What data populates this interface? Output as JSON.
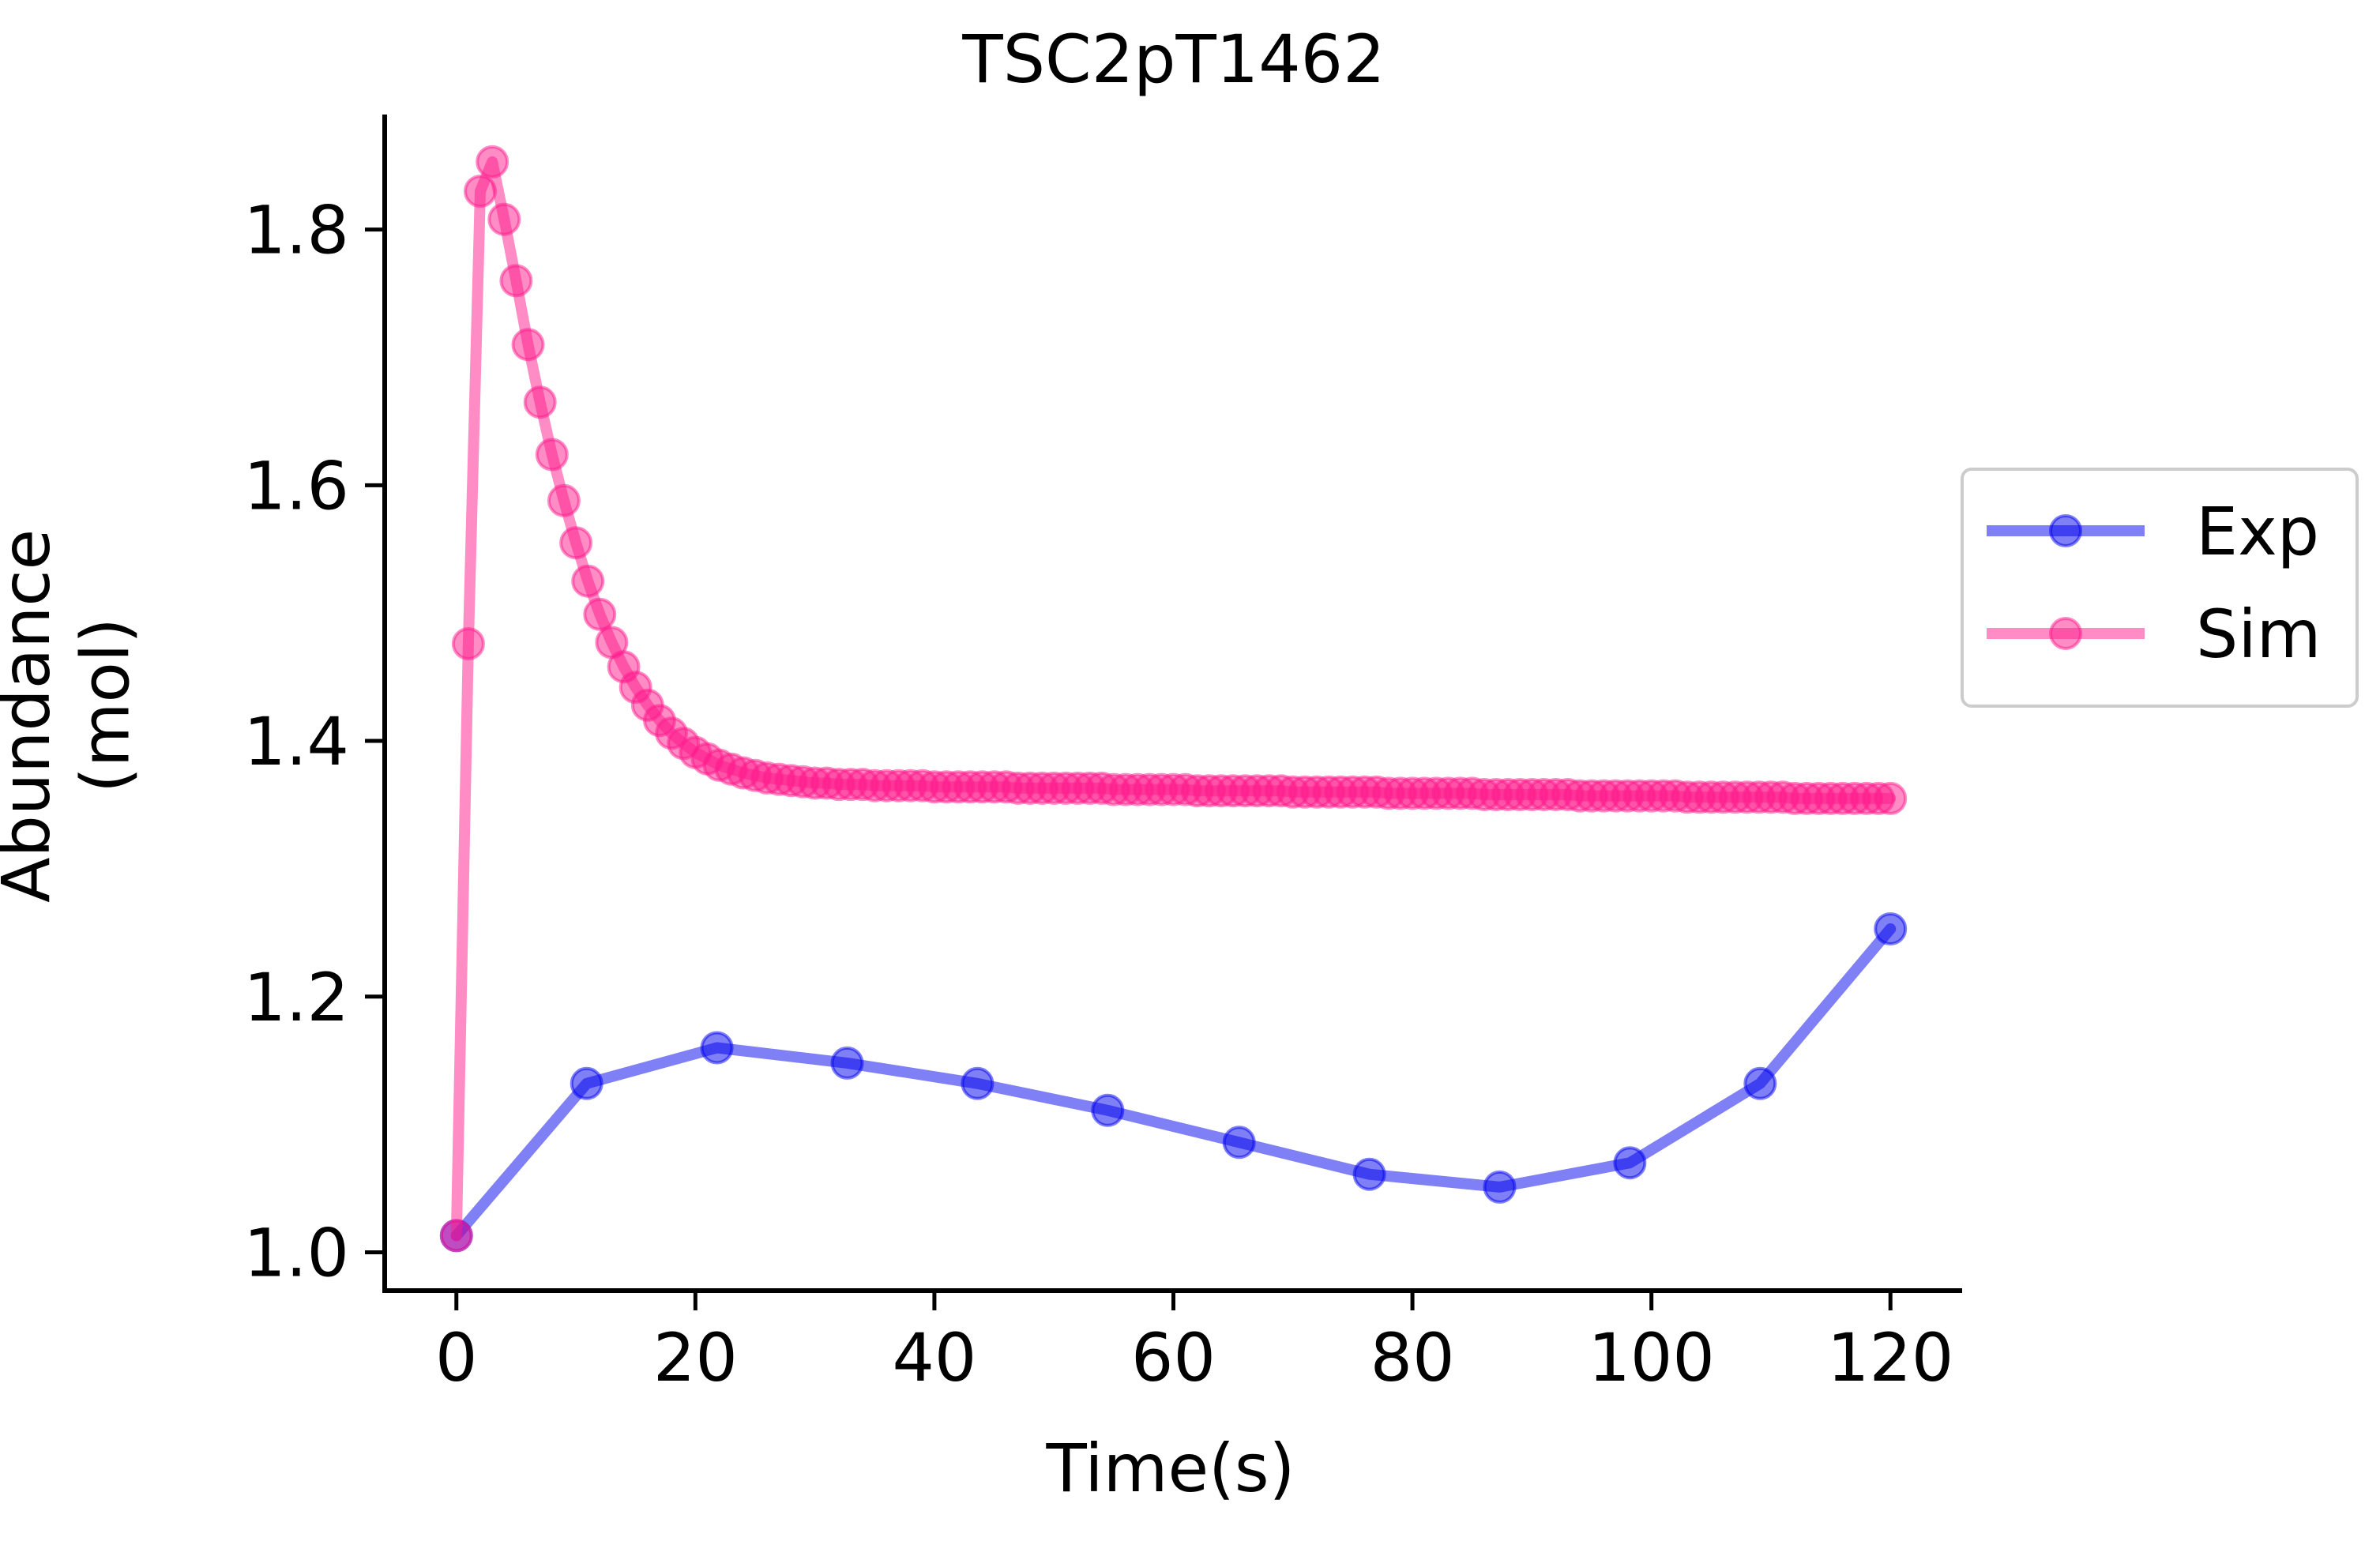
{
  "chart_data": {
    "type": "line",
    "title": "TSC2pT1462",
    "xlabel": "Time(s)",
    "ylabel_line1": "Abundance",
    "ylabel_line2": "(mol)",
    "xlim": [
      -6,
      126
    ],
    "ylim": [
      0.97,
      1.89
    ],
    "xticks": [
      0,
      20,
      40,
      60,
      80,
      100,
      120
    ],
    "xtick_labels": [
      "0",
      "20",
      "40",
      "60",
      "80",
      "100",
      "120"
    ],
    "yticks": [
      1.0,
      1.2,
      1.4,
      1.6,
      1.8
    ],
    "ytick_labels": [
      "1.0",
      "1.2",
      "1.4",
      "1.6",
      "1.8"
    ],
    "grid": false,
    "legend_position": "right",
    "series": [
      {
        "name": "Exp",
        "color": "#0000ee",
        "x": [
          0,
          10.9,
          21.8,
          32.7,
          43.6,
          54.5,
          65.5,
          76.4,
          87.3,
          98.2,
          109.1,
          120
        ],
        "y": [
          1.013,
          1.132,
          1.16,
          1.148,
          1.132,
          1.111,
          1.086,
          1.061,
          1.051,
          1.07,
          1.132,
          1.253
        ]
      },
      {
        "name": "Sim",
        "color": "#ff1a8c",
        "x": [
          0,
          1,
          2,
          3,
          4,
          5,
          6,
          7,
          8,
          9,
          10,
          11,
          12,
          13,
          14,
          15,
          16,
          17,
          18,
          19,
          20,
          21,
          22,
          23,
          24,
          25,
          26,
          27,
          28,
          29,
          30,
          31,
          32,
          33,
          34,
          35,
          36,
          37,
          38,
          39,
          40,
          41,
          42,
          43,
          44,
          45,
          46,
          47,
          48,
          49,
          50,
          51,
          52,
          53,
          54,
          55,
          56,
          57,
          58,
          59,
          60,
          61,
          62,
          63,
          64,
          65,
          66,
          67,
          68,
          69,
          70,
          71,
          72,
          73,
          74,
          75,
          76,
          77,
          78,
          79,
          80,
          81,
          82,
          83,
          84,
          85,
          86,
          87,
          88,
          89,
          90,
          91,
          92,
          93,
          94,
          95,
          96,
          97,
          98,
          99,
          100,
          101,
          102,
          103,
          104,
          105,
          106,
          107,
          108,
          109,
          110,
          111,
          112,
          113,
          114,
          115,
          116,
          117,
          118,
          119,
          120
        ],
        "y": [
          1.013,
          1.476,
          1.83,
          1.853,
          1.808,
          1.76,
          1.71,
          1.665,
          1.624,
          1.588,
          1.555,
          1.525,
          1.499,
          1.477,
          1.458,
          1.442,
          1.428,
          1.416,
          1.406,
          1.398,
          1.391,
          1.386,
          1.381,
          1.378,
          1.375,
          1.373,
          1.371,
          1.37,
          1.369,
          1.368,
          1.367,
          1.367,
          1.366,
          1.366,
          1.366,
          1.365,
          1.365,
          1.365,
          1.365,
          1.365,
          1.364,
          1.364,
          1.364,
          1.364,
          1.364,
          1.364,
          1.364,
          1.363,
          1.363,
          1.363,
          1.363,
          1.363,
          1.363,
          1.363,
          1.363,
          1.362,
          1.362,
          1.362,
          1.362,
          1.362,
          1.362,
          1.362,
          1.361,
          1.361,
          1.361,
          1.361,
          1.361,
          1.361,
          1.361,
          1.361,
          1.36,
          1.36,
          1.36,
          1.36,
          1.36,
          1.36,
          1.36,
          1.36,
          1.359,
          1.359,
          1.359,
          1.359,
          1.359,
          1.359,
          1.359,
          1.359,
          1.358,
          1.358,
          1.358,
          1.358,
          1.358,
          1.358,
          1.358,
          1.358,
          1.357,
          1.357,
          1.357,
          1.357,
          1.357,
          1.357,
          1.357,
          1.357,
          1.357,
          1.356,
          1.356,
          1.356,
          1.356,
          1.356,
          1.356,
          1.356,
          1.356,
          1.356,
          1.355,
          1.355,
          1.355,
          1.355,
          1.355,
          1.355,
          1.355,
          1.355,
          1.355
        ]
      }
    ]
  }
}
